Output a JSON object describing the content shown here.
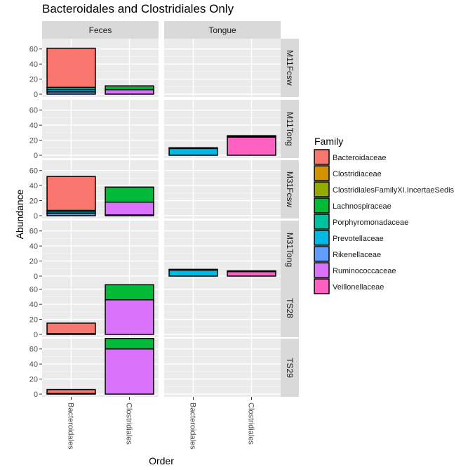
{
  "chart_data": {
    "type": "bar",
    "title": "Bacteroidales and Clostridiales Only",
    "xlabel": "Order",
    "ylabel": "Abundance",
    "ylim": [
      0,
      70
    ],
    "yticks": [
      0,
      20,
      40,
      60
    ],
    "grid": true,
    "legend_position": "right",
    "legend_title": "Family",
    "columns": [
      "Feces",
      "Tongue"
    ],
    "rows": [
      "M11Fcsw",
      "M11Tong",
      "M31Fcsw",
      "M31Tong",
      "TS28",
      "TS29"
    ],
    "categories": [
      "Bacteroidales",
      "Clostridiales"
    ],
    "families": [
      {
        "name": "Bacteroidaceae",
        "color": "#F8766D"
      },
      {
        "name": "Clostridiaceae",
        "color": "#D39200"
      },
      {
        "name": "ClostridialesFamilyXI.IncertaeSedis",
        "color": "#93AA00"
      },
      {
        "name": "Lachnospiraceae",
        "color": "#00BA38"
      },
      {
        "name": "Porphyromonadaceae",
        "color": "#00C19F"
      },
      {
        "name": "Prevotellaceae",
        "color": "#00B9E3"
      },
      {
        "name": "Rikenellaceae",
        "color": "#619CFF"
      },
      {
        "name": "Ruminococcaceae",
        "color": "#DB72FB"
      },
      {
        "name": "Veillonellaceae",
        "color": "#FF61C3"
      }
    ],
    "panels": [
      {
        "row": "M11Fcsw",
        "col": "Feces",
        "bars": {
          "Bacteroidales": [
            {
              "family": "Rikenellaceae",
              "value": 3
            },
            {
              "family": "Prevotellaceae",
              "value": 3
            },
            {
              "family": "Porphyromonadaceae",
              "value": 3
            },
            {
              "family": "Bacteroidaceae",
              "value": 52
            }
          ],
          "Clostridiales": [
            {
              "family": "Ruminococcaceae",
              "value": 6
            },
            {
              "family": "Lachnospiraceae",
              "value": 5
            }
          ]
        }
      },
      {
        "row": "M11Fcsw",
        "col": "Tongue",
        "bars": {}
      },
      {
        "row": "M11Tong",
        "col": "Feces",
        "bars": {}
      },
      {
        "row": "M11Tong",
        "col": "Tongue",
        "bars": {
          "Bacteroidales": [
            {
              "family": "Prevotellaceae",
              "value": 9
            },
            {
              "family": "Porphyromonadaceae",
              "value": 1
            }
          ],
          "Clostridiales": [
            {
              "family": "Veillonellaceae",
              "value": 24
            },
            {
              "family": "Lachnospiraceae",
              "value": 1
            },
            {
              "family": "Ruminococcaceae",
              "value": 1
            }
          ]
        }
      },
      {
        "row": "M31Fcsw",
        "col": "Feces",
        "bars": {
          "Bacteroidales": [
            {
              "family": "Rikenellaceae",
              "value": 3
            },
            {
              "family": "Prevotellaceae",
              "value": 2
            },
            {
              "family": "Porphyromonadaceae",
              "value": 2
            },
            {
              "family": "Bacteroidaceae",
              "value": 45
            }
          ],
          "Clostridiales": [
            {
              "family": "Veillonellaceae",
              "value": 1
            },
            {
              "family": "Ruminococcaceae",
              "value": 17
            },
            {
              "family": "Lachnospiraceae",
              "value": 20
            }
          ]
        }
      },
      {
        "row": "M31Fcsw",
        "col": "Tongue",
        "bars": {}
      },
      {
        "row": "M31Tong",
        "col": "Feces",
        "bars": {}
      },
      {
        "row": "M31Tong",
        "col": "Tongue",
        "bars": {
          "Bacteroidales": [
            {
              "family": "Prevotellaceae",
              "value": 8
            },
            {
              "family": "Porphyromonadaceae",
              "value": 1
            }
          ],
          "Clostridiales": [
            {
              "family": "Veillonellaceae",
              "value": 6
            },
            {
              "family": "Lachnospiraceae",
              "value": 1
            }
          ]
        }
      },
      {
        "row": "TS28",
        "col": "Feces",
        "bars": {
          "Bacteroidales": [
            {
              "family": "Prevotellaceae",
              "value": 1
            },
            {
              "family": "Bacteroidaceae",
              "value": 14
            }
          ],
          "Clostridiales": [
            {
              "family": "Ruminococcaceae",
              "value": 46
            },
            {
              "family": "Lachnospiraceae",
              "value": 20
            }
          ]
        }
      },
      {
        "row": "TS28",
        "col": "Tongue",
        "bars": {}
      },
      {
        "row": "TS29",
        "col": "Feces",
        "bars": {
          "Bacteroidales": [
            {
              "family": "Rikenellaceae",
              "value": 1
            },
            {
              "family": "Bacteroidaceae",
              "value": 5
            }
          ],
          "Clostridiales": [
            {
              "family": "Ruminococcaceae",
              "value": 60
            },
            {
              "family": "Lachnospiraceae",
              "value": 14
            }
          ]
        }
      },
      {
        "row": "TS29",
        "col": "Tongue",
        "bars": {}
      }
    ]
  }
}
